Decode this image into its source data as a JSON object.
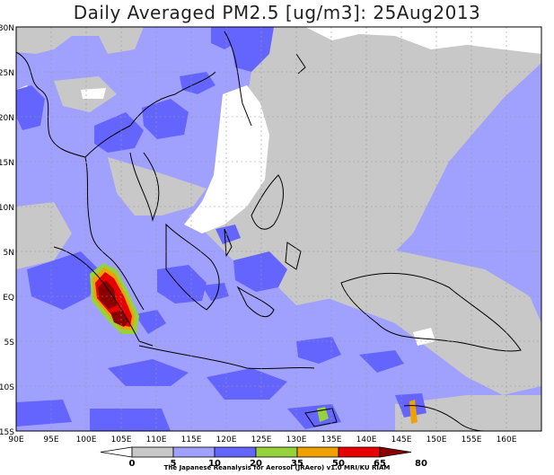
{
  "title": "Daily Averaged PM2.5 [ug/m3]: 25Aug2013",
  "lat_labels": [
    "30N",
    "25N",
    "20N",
    "15N",
    "10N",
    "5N",
    "EQ",
    "5S",
    "10S",
    "15S"
  ],
  "lon_labels": [
    "90E",
    "95E",
    "100E",
    "105E",
    "110E",
    "115E",
    "120E",
    "125E",
    "130E",
    "135E",
    "140E",
    "145E",
    "150E",
    "155E",
    "160E"
  ],
  "colorbar": {
    "ticks": [
      "0",
      "5",
      "10",
      "20",
      "35",
      "50",
      "65",
      "80"
    ],
    "colors": [
      "#ffffff",
      "#c8c8c8",
      "#a0a0ff",
      "#6464ff",
      "#96d23c",
      "#f0a000",
      "#e60000",
      "#8c0000"
    ]
  },
  "credit": "The Japanese Reanalysis for Aerosol (JRAero) v1.0 MRI/KU RIAM",
  "map_colors": {
    "band_5_10": "#c8c8c8",
    "band_10_20": "#a0a0ff",
    "band_20_35": "#6464ff",
    "band_35_50": "#96d23c",
    "band_50_65": "#f0a000",
    "band_65_80": "#e60000",
    "band_80_plus": "#8c0000"
  }
}
